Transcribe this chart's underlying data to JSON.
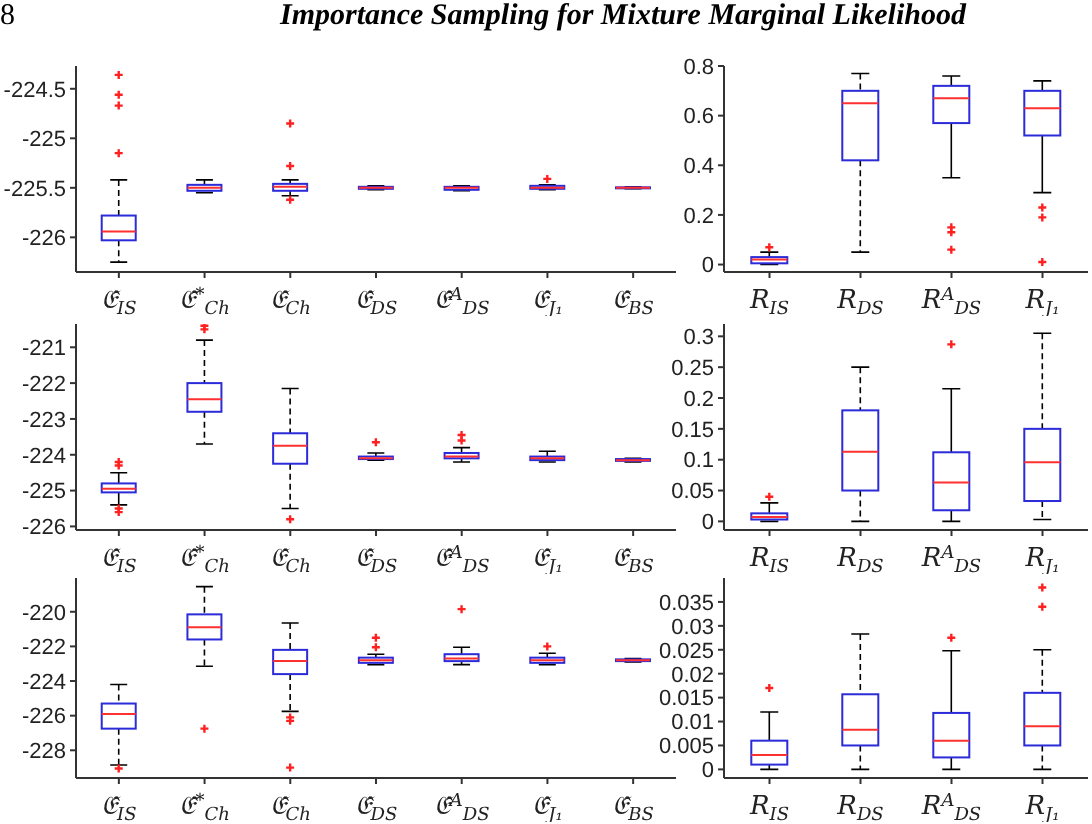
{
  "chart_data": [
    {
      "type": "box",
      "annotations": [
        "8",
        "Importance Sampling for Mixture Marginal Likelihood"
      ],
      "categories": [
        "𝔈̂$_{IS}$",
        "𝔈̂$^{*}$$_{Ch}$",
        "𝔈̂$_{Ch}$",
        "𝔈̂$_{DS}$",
        "𝔈̂$^{A}$$_{DS}$",
        "𝔈̂$_{J₁}$",
        "𝔈̂$_{BS}$"
      ],
      "color": "#2b2bd9",
      "marker": "cross",
      "ylim": [
        -226.35,
        -224.27
      ],
      "yticks": [
        -226,
        -225.5,
        -225,
        -224.5
      ],
      "boxes": [
        {
          "low": -226.25,
          "q1": -226.03,
          "median": -225.94,
          "q3": -225.78,
          "high": -225.42,
          "outliers": [
            -224.36,
            -224.56,
            -224.67,
            -225.15
          ]
        },
        {
          "low": -225.55,
          "q1": -225.53,
          "median": -225.5,
          "q3": -225.47,
          "high": -225.42
        },
        {
          "low": -225.58,
          "q1": -225.53,
          "median": -225.49,
          "q3": -225.46,
          "high": -225.42,
          "outliers": [
            -224.85,
            -225.28,
            -225.62
          ]
        },
        {
          "low": -225.52,
          "q1": -225.51,
          "median": -225.5,
          "q3": -225.49,
          "high": -225.48
        },
        {
          "low": -225.53,
          "q1": -225.52,
          "median": -225.5,
          "q3": -225.49,
          "high": -225.48
        },
        {
          "low": -225.52,
          "q1": -225.51,
          "median": -225.5,
          "q3": -225.48,
          "high": -225.47,
          "outliers": [
            -225.41
          ]
        },
        {
          "low": -225.51,
          "q1": -225.505,
          "median": -225.5,
          "q3": -225.495,
          "high": -225.49
        }
      ]
    },
    {
      "type": "box",
      "categories": [
        "R$_{IS}$",
        "R$_{DS}$",
        "R$^{A}$$_{DS}$",
        "R$_{J₁}$"
      ],
      "color": "#2b2bd9",
      "marker": "cross",
      "ylim": [
        -0.03,
        0.8
      ],
      "yticks": [
        0,
        0.2,
        0.4,
        0.6,
        0.8
      ],
      "boxes": [
        {
          "low": 0,
          "q1": 0.005,
          "median": 0.02,
          "q3": 0.03,
          "high": 0.05,
          "outliers": [
            0.07
          ]
        },
        {
          "low": 0.05,
          "q1": 0.42,
          "median": 0.65,
          "q3": 0.7,
          "high": 0.77
        },
        {
          "low": 0.35,
          "q1": 0.57,
          "median": 0.67,
          "q3": 0.72,
          "high": 0.76,
          "outliers": [
            0.15,
            0.13,
            0.06
          ]
        },
        {
          "low": 0.29,
          "q1": 0.52,
          "median": 0.63,
          "q3": 0.7,
          "high": 0.74,
          "outliers": [
            0.23,
            0.19,
            0.01
          ]
        }
      ]
    },
    {
      "type": "box",
      "categories": [
        "𝔈̂$_{IS}$",
        "𝔈̂$^{*}$$_{Ch}$",
        "𝔈̂$_{Ch}$",
        "𝔈̂$_{DS}$",
        "𝔈̂$^{A}$$_{DS}$",
        "𝔈̂$_{J₁}$",
        "𝔈̂$_{BS}$"
      ],
      "color": "#2b2bd9",
      "marker": "cross",
      "ylim": [
        -226.1,
        -220.35
      ],
      "yticks": [
        -226,
        -225,
        -224,
        -223,
        -222,
        -221
      ],
      "boxes": [
        {
          "low": -225.4,
          "q1": -225.05,
          "median": -224.95,
          "q3": -224.8,
          "high": -224.5,
          "outliers": [
            -224.2,
            -224.3,
            -225.5,
            -225.6
          ]
        },
        {
          "low": -223.7,
          "q1": -222.8,
          "median": -222.45,
          "q3": -222,
          "high": -220.8,
          "outliers": [
            -220.4,
            -220.5
          ]
        },
        {
          "low": -225.5,
          "q1": -224.25,
          "median": -223.75,
          "q3": -223.4,
          "high": -222.15,
          "outliers": [
            -225.8
          ]
        },
        {
          "low": -224.15,
          "q1": -224.12,
          "median": -224.1,
          "q3": -224.05,
          "high": -223.95,
          "outliers": [
            -223.65
          ]
        },
        {
          "low": -224.2,
          "q1": -224.1,
          "median": -224.05,
          "q3": -223.95,
          "high": -223.8,
          "outliers": [
            -223.45,
            -223.6
          ]
        },
        {
          "low": -224.2,
          "q1": -224.15,
          "median": -224.1,
          "q3": -224.05,
          "high": -223.9
        },
        {
          "low": -224.2,
          "q1": -224.17,
          "median": -224.15,
          "q3": -224.12,
          "high": -224.1
        }
      ]
    },
    {
      "type": "box",
      "categories": [
        "R$_{IS}$",
        "R$_{DS}$",
        "R$^{A}$$_{DS}$",
        "R$_{J₁}$"
      ],
      "color": "#2b2bd9",
      "marker": "cross",
      "ylim": [
        -0.014,
        0.32
      ],
      "yticks": [
        0,
        0.05,
        0.1,
        0.15,
        0.2,
        0.25,
        0.3
      ],
      "boxes": [
        {
          "low": 0,
          "q1": 0.003,
          "median": 0.007,
          "q3": 0.013,
          "high": 0.03,
          "outliers": [
            0.04
          ]
        },
        {
          "low": 0,
          "q1": 0.05,
          "median": 0.113,
          "q3": 0.18,
          "high": 0.25
        },
        {
          "low": 0,
          "q1": 0.018,
          "median": 0.063,
          "q3": 0.112,
          "high": 0.215,
          "outliers": [
            0.287
          ]
        },
        {
          "low": 0.003,
          "q1": 0.033,
          "median": 0.096,
          "q3": 0.15,
          "high": 0.305
        }
      ]
    },
    {
      "type": "box",
      "categories": [
        "𝔈̂$_{IS}$",
        "𝔈̂$^{*}$$_{Ch}$",
        "𝔈̂$_{Ch}$",
        "𝔈̂$_{DS}$",
        "𝔈̂$^{A}$$_{DS}$",
        "𝔈̂$_{J₁}$",
        "𝔈̂$_{BS}$"
      ],
      "color": "#2b2bd9",
      "marker": "cross",
      "ylim": [
        -229.6,
        -218.05
      ],
      "yticks": [
        -228,
        -226,
        -224,
        -222,
        -220
      ],
      "boxes": [
        {
          "low": -228.85,
          "q1": -226.75,
          "median": -225.9,
          "q3": -225.3,
          "high": -224.2,
          "outliers": [
            -229.05
          ]
        },
        {
          "low": -223.15,
          "q1": -221.6,
          "median": -220.9,
          "q3": -220.15,
          "high": -218.55,
          "outliers": [
            -226.75
          ]
        },
        {
          "low": -225.75,
          "q1": -223.6,
          "median": -222.85,
          "q3": -222.2,
          "high": -220.65,
          "outliers": [
            -226.1,
            -226.3,
            -229
          ]
        },
        {
          "low": -223.05,
          "q1": -222.95,
          "median": -222.8,
          "q3": -222.65,
          "high": -222.45,
          "outliers": [
            -222.05,
            -221.5
          ]
        },
        {
          "low": -223.05,
          "q1": -222.85,
          "median": -222.7,
          "q3": -222.45,
          "high": -222.05,
          "outliers": [
            -219.85
          ]
        },
        {
          "low": -223.05,
          "q1": -222.95,
          "median": -222.8,
          "q3": -222.65,
          "high": -222.4,
          "outliers": [
            -222
          ]
        },
        {
          "low": -222.9,
          "q1": -222.85,
          "median": -222.8,
          "q3": -222.75,
          "high": -222.7
        }
      ]
    },
    {
      "type": "box",
      "categories": [
        "R$_{IS}$",
        "R$_{DS}$",
        "R$^{A}$$_{DS}$",
        "R$_{J₁}$"
      ],
      "color": "#2b2bd9",
      "marker": "cross",
      "ylim": [
        -0.0018,
        0.04
      ],
      "yticks": [
        0,
        0.005,
        0.01,
        0.015,
        0.02,
        0.025,
        0.03,
        0.035
      ],
      "boxes": [
        {
          "low": 0,
          "q1": 0.001,
          "median": 0.003,
          "q3": 0.006,
          "high": 0.012,
          "outliers": [
            0.017
          ]
        },
        {
          "low": 0,
          "q1": 0.005,
          "median": 0.0083,
          "q3": 0.0157,
          "high": 0.0283
        },
        {
          "low": 0,
          "q1": 0.0025,
          "median": 0.006,
          "q3": 0.0118,
          "high": 0.0248,
          "outliers": [
            0.0275
          ]
        },
        {
          "low": 0,
          "q1": 0.005,
          "median": 0.009,
          "q3": 0.016,
          "high": 0.025,
          "outliers": [
            0.034,
            0.038
          ]
        }
      ]
    }
  ]
}
